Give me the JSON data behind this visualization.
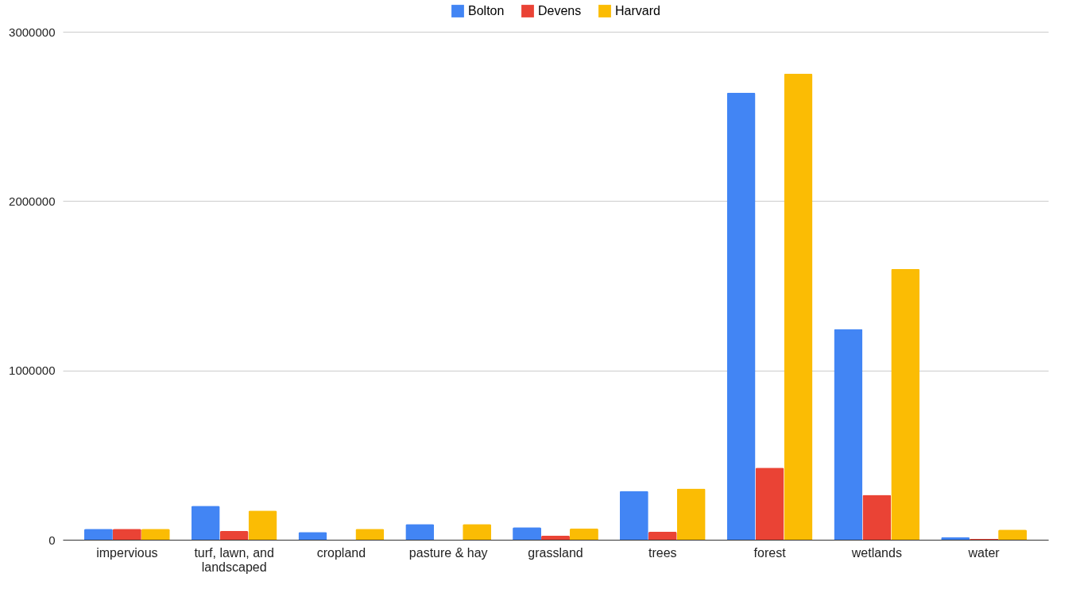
{
  "chart_data": {
    "type": "bar",
    "categories": [
      "impervious",
      "turf, lawn, and landscaped",
      "cropland",
      "pasture & hay",
      "grassland",
      "trees",
      "forest",
      "wetlands",
      "water"
    ],
    "series": [
      {
        "name": "Bolton",
        "color": "#4285f4",
        "values": [
          65000,
          200000,
          46000,
          93000,
          74000,
          288000,
          2640000,
          1245000,
          14000
        ]
      },
      {
        "name": "Devens",
        "color": "#ea4335",
        "values": [
          65000,
          51000,
          null,
          null,
          25000,
          47000,
          425000,
          265000,
          6000
        ]
      },
      {
        "name": "Harvard",
        "color": "#fbbc04",
        "values": [
          65000,
          172000,
          65000,
          93000,
          67000,
          302000,
          2753000,
          1600000,
          60000
        ]
      }
    ],
    "ylim": [
      0,
      3000000
    ],
    "yticks": [
      0,
      1000000,
      2000000,
      3000000
    ],
    "grid": "y",
    "legend": "top"
  }
}
